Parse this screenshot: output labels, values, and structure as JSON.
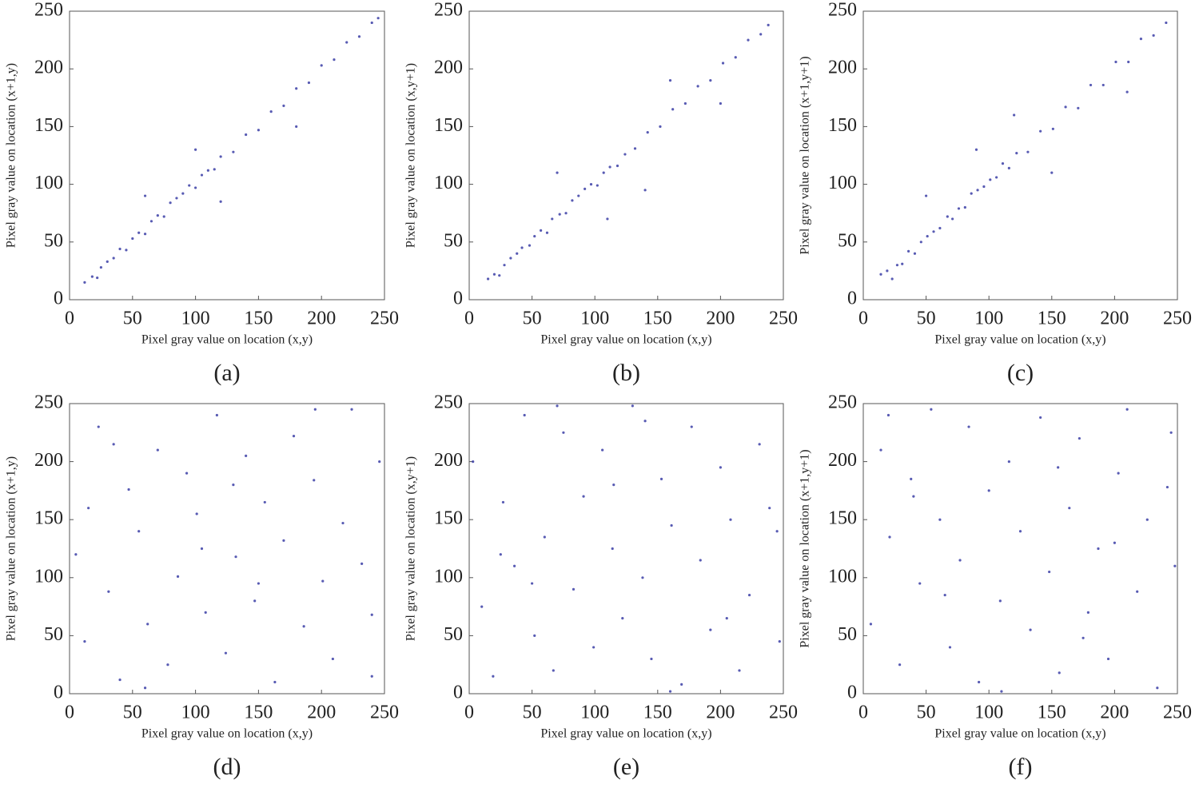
{
  "chart_data": [
    {
      "type": "scatter",
      "caption": "(a)",
      "xlabel": "Pixel gray value on location (x,y)",
      "ylabel": "Pixel gray value on location (x+1,y)",
      "color": "#3b3ea6",
      "xlim": [
        0,
        250
      ],
      "ylim": [
        0,
        250
      ],
      "xticks": [
        0,
        50,
        100,
        150,
        200,
        250
      ],
      "yticks": [
        0,
        50,
        100,
        150,
        200,
        250
      ],
      "x": [
        12,
        18,
        22,
        25,
        30,
        35,
        40,
        45,
        50,
        55,
        60,
        65,
        70,
        75,
        80,
        85,
        90,
        95,
        100,
        105,
        110,
        115,
        120,
        130,
        140,
        150,
        160,
        170,
        180,
        190,
        200,
        210,
        220,
        230,
        240,
        245,
        60,
        120,
        180,
        100
      ],
      "y": [
        15,
        20,
        19,
        28,
        33,
        36,
        44,
        43,
        53,
        58,
        57,
        68,
        73,
        72,
        84,
        88,
        92,
        99,
        97,
        108,
        112,
        113,
        124,
        128,
        143,
        147,
        163,
        168,
        183,
        188,
        203,
        208,
        223,
        228,
        240,
        244,
        90,
        85,
        150,
        130
      ]
    },
    {
      "type": "scatter",
      "caption": "(b)",
      "xlabel": "Pixel gray value on location (x,y)",
      "ylabel": "Pixel gray value on location (x,y+1)",
      "color": "#3b3ea6",
      "xlim": [
        0,
        250
      ],
      "ylim": [
        0,
        250
      ],
      "xticks": [
        0,
        50,
        100,
        150,
        200,
        250
      ],
      "yticks": [
        0,
        50,
        100,
        150,
        200,
        250
      ],
      "x": [
        15,
        20,
        24,
        28,
        33,
        38,
        42,
        48,
        52,
        57,
        62,
        66,
        72,
        77,
        82,
        87,
        92,
        97,
        102,
        107,
        112,
        118,
        124,
        132,
        142,
        152,
        162,
        172,
        182,
        192,
        202,
        212,
        222,
        232,
        238,
        70,
        110,
        160,
        200,
        140
      ],
      "y": [
        18,
        22,
        21,
        30,
        36,
        40,
        45,
        47,
        55,
        60,
        58,
        70,
        74,
        75,
        86,
        90,
        96,
        100,
        99,
        110,
        115,
        116,
        126,
        131,
        145,
        150,
        165,
        170,
        185,
        190,
        205,
        210,
        225,
        230,
        238,
        110,
        70,
        190,
        170,
        95
      ]
    },
    {
      "type": "scatter",
      "caption": "(c)",
      "xlabel": "Pixel gray value on location (x,y)",
      "ylabel": "Pixel gray value on location (x+1,y+1)",
      "color": "#3b3ea6",
      "xlim": [
        0,
        250
      ],
      "ylim": [
        0,
        250
      ],
      "xticks": [
        0,
        50,
        100,
        150,
        200,
        250
      ],
      "yticks": [
        0,
        50,
        100,
        150,
        200,
        250
      ],
      "x": [
        14,
        19,
        23,
        27,
        31,
        36,
        41,
        46,
        51,
        56,
        61,
        67,
        71,
        76,
        81,
        86,
        91,
        96,
        101,
        106,
        111,
        116,
        122,
        131,
        141,
        151,
        161,
        171,
        181,
        191,
        201,
        211,
        221,
        231,
        241,
        50,
        90,
        150,
        210,
        120
      ],
      "y": [
        22,
        25,
        18,
        30,
        31,
        42,
        40,
        50,
        55,
        59,
        62,
        72,
        70,
        79,
        80,
        92,
        95,
        98,
        104,
        106,
        118,
        114,
        127,
        128,
        146,
        148,
        167,
        166,
        186,
        186,
        206,
        206,
        226,
        229,
        240,
        90,
        130,
        110,
        180,
        160
      ]
    },
    {
      "type": "scatter",
      "caption": "(d)",
      "xlabel": "Pixel gray value on location (x,y)",
      "ylabel": "Pixel gray value on location (x+1,y)",
      "color": "#3b3ea6",
      "xlim": [
        0,
        250
      ],
      "ylim": [
        0,
        250
      ],
      "xticks": [
        0,
        50,
        100,
        150,
        200,
        250
      ],
      "yticks": [
        0,
        50,
        100,
        150,
        200,
        250
      ],
      "x": [
        5,
        12,
        23,
        31,
        40,
        47,
        55,
        62,
        70,
        78,
        86,
        93,
        101,
        108,
        117,
        124,
        132,
        140,
        147,
        155,
        163,
        170,
        178,
        186,
        194,
        201,
        209,
        217,
        224,
        232,
        240,
        246,
        15,
        60,
        105,
        150,
        195,
        240,
        35,
        130
      ],
      "y": [
        120,
        45,
        230,
        88,
        12,
        176,
        140,
        60,
        210,
        25,
        101,
        190,
        155,
        70,
        240,
        35,
        118,
        205,
        80,
        165,
        10,
        132,
        222,
        58,
        184,
        97,
        30,
        147,
        245,
        112,
        68,
        200,
        160,
        5,
        125,
        95,
        245,
        15,
        215,
        180
      ]
    },
    {
      "type": "scatter",
      "caption": "(e)",
      "xlabel": "Pixel gray value on location (x,y)",
      "ylabel": "Pixel gray value on location (x,y+1)",
      "color": "#3b3ea6",
      "xlim": [
        0,
        250
      ],
      "ylim": [
        0,
        250
      ],
      "xticks": [
        0,
        50,
        100,
        150,
        200,
        250
      ],
      "yticks": [
        0,
        50,
        100,
        150,
        200,
        250
      ],
      "x": [
        3,
        10,
        19,
        27,
        36,
        44,
        52,
        60,
        67,
        75,
        83,
        91,
        99,
        106,
        114,
        122,
        130,
        138,
        145,
        153,
        161,
        169,
        177,
        184,
        192,
        200,
        208,
        215,
        223,
        231,
        239,
        247,
        25,
        70,
        115,
        160,
        205,
        245,
        50,
        140
      ],
      "y": [
        200,
        75,
        15,
        165,
        110,
        240,
        50,
        135,
        20,
        225,
        90,
        170,
        40,
        210,
        125,
        65,
        248,
        100,
        30,
        185,
        145,
        8,
        230,
        115,
        55,
        195,
        150,
        20,
        85,
        215,
        160,
        45,
        120,
        248,
        180,
        2,
        65,
        140,
        95,
        235
      ]
    },
    {
      "type": "scatter",
      "caption": "(f)",
      "xlabel": "Pixel gray value on location (x,y)",
      "ylabel": "Pixel gray value on location (x+1,y+1)",
      "color": "#3b3ea6",
      "xlim": [
        0,
        250
      ],
      "ylim": [
        0,
        250
      ],
      "xticks": [
        0,
        50,
        100,
        150,
        200,
        250
      ],
      "yticks": [
        0,
        50,
        100,
        150,
        200,
        250
      ],
      "x": [
        6,
        14,
        21,
        29,
        38,
        45,
        54,
        61,
        69,
        77,
        84,
        92,
        100,
        109,
        116,
        125,
        133,
        141,
        148,
        156,
        164,
        172,
        179,
        187,
        195,
        203,
        210,
        218,
        226,
        234,
        242,
        248,
        20,
        65,
        110,
        155,
        200,
        245,
        40,
        175
      ],
      "y": [
        60,
        210,
        135,
        25,
        185,
        95,
        245,
        150,
        40,
        115,
        230,
        10,
        175,
        80,
        200,
        140,
        55,
        238,
        105,
        18,
        160,
        220,
        70,
        125,
        30,
        190,
        245,
        88,
        150,
        5,
        178,
        110,
        240,
        85,
        2,
        195,
        130,
        225,
        170,
        48
      ]
    }
  ]
}
